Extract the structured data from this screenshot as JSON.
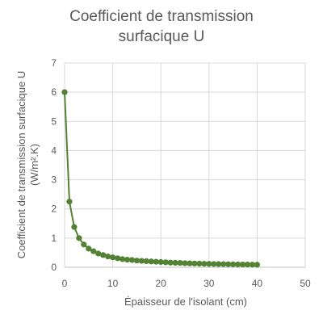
{
  "chart_data": {
    "type": "scatter",
    "title": [
      "Coefficient de transmission",
      "surfacique U"
    ],
    "xlabel": "Épaisseur de l'isolant (cm)",
    "ylabel": [
      "Coefficient de transmission surfacique U",
      "(W/m².K)"
    ],
    "xlim": [
      0,
      50
    ],
    "ylim": [
      0,
      7
    ],
    "xticks": [
      "0",
      "10",
      "20",
      "30",
      "40",
      "50"
    ],
    "yticks": [
      "0",
      "1",
      "2",
      "3",
      "4",
      "5",
      "6",
      "7"
    ],
    "grid": true,
    "legend": "none",
    "series": [
      {
        "color": "#548235",
        "x": [
          0,
          1,
          2,
          3,
          4,
          5,
          6,
          7,
          8,
          9,
          10,
          11,
          12,
          13,
          14,
          15,
          16,
          17,
          18,
          19,
          20,
          21,
          22,
          23,
          24,
          25,
          26,
          27,
          28,
          29,
          30,
          31,
          32,
          33,
          34,
          35,
          36,
          37,
          38,
          39,
          40
        ],
        "y": [
          6.0,
          2.25,
          1.38,
          1.0,
          0.78,
          0.64,
          0.55,
          0.47,
          0.42,
          0.37,
          0.34,
          0.31,
          0.28,
          0.26,
          0.25,
          0.23,
          0.22,
          0.21,
          0.2,
          0.19,
          0.18,
          0.17,
          0.16,
          0.155,
          0.15,
          0.14,
          0.135,
          0.13,
          0.125,
          0.12,
          0.117,
          0.113,
          0.11,
          0.107,
          0.104,
          0.1,
          0.098,
          0.095,
          0.093,
          0.09,
          0.088
        ]
      }
    ]
  }
}
